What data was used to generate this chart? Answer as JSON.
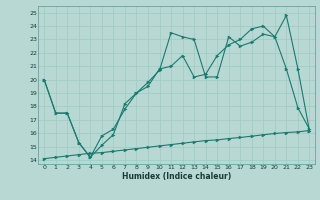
{
  "xlabel": "Humidex (Indice chaleur)",
  "xlim_min": -0.5,
  "xlim_max": 23.5,
  "ylim_min": 13.7,
  "ylim_max": 25.5,
  "yticks": [
    14,
    15,
    16,
    17,
    18,
    19,
    20,
    21,
    22,
    23,
    24,
    25
  ],
  "xticks": [
    0,
    1,
    2,
    3,
    4,
    5,
    6,
    7,
    8,
    9,
    10,
    11,
    12,
    13,
    14,
    15,
    16,
    17,
    18,
    19,
    20,
    21,
    22,
    23
  ],
  "line_color": "#1a7a6e",
  "bg_color": "#b8d8d4",
  "grid_color": "#9ecac5",
  "line1_x": [
    0,
    1,
    2,
    3,
    4,
    5,
    6,
    7,
    8,
    9,
    10,
    11,
    12,
    13,
    14,
    15,
    16,
    17,
    18,
    19,
    20,
    21,
    22,
    23
  ],
  "line1_y": [
    20.0,
    17.5,
    17.5,
    15.3,
    14.2,
    15.8,
    16.3,
    17.8,
    19.0,
    19.8,
    20.7,
    23.5,
    23.2,
    23.0,
    20.2,
    20.2,
    23.2,
    22.5,
    22.8,
    23.4,
    23.2,
    20.8,
    17.9,
    16.3
  ],
  "line2_x": [
    0,
    1,
    2,
    3,
    4,
    5,
    6,
    7,
    8,
    9,
    10,
    11,
    12,
    13,
    14,
    15,
    16,
    17,
    18,
    19,
    20,
    21,
    22,
    23
  ],
  "line2_y": [
    20.0,
    17.5,
    17.5,
    15.3,
    14.2,
    15.1,
    15.9,
    18.2,
    19.0,
    19.5,
    20.8,
    21.0,
    21.8,
    20.2,
    20.4,
    21.8,
    22.6,
    23.0,
    23.8,
    24.0,
    23.2,
    24.8,
    20.8,
    16.2
  ],
  "line3_x": [
    0,
    1,
    2,
    3,
    4,
    5,
    6,
    7,
    8,
    9,
    10,
    11,
    12,
    13,
    14,
    15,
    16,
    17,
    18,
    19,
    20,
    21,
    22,
    23
  ],
  "line3_y": [
    14.1,
    14.2,
    14.3,
    14.4,
    14.5,
    14.55,
    14.65,
    14.75,
    14.85,
    14.95,
    15.05,
    15.15,
    15.25,
    15.35,
    15.45,
    15.5,
    15.6,
    15.68,
    15.78,
    15.88,
    15.98,
    16.05,
    16.1,
    16.2
  ]
}
